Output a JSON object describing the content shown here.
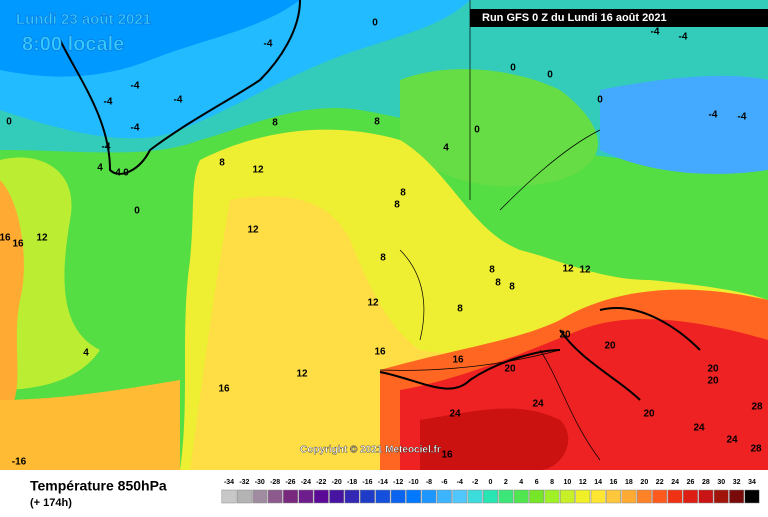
{
  "header": {
    "date": "Lundi 23 août 2021",
    "time": "8:00 locale",
    "run": "Run GFS 0 Z du Lundi 16 août 2021"
  },
  "copyright": "Copyright © 2021 Meteociel.fr",
  "footer": {
    "title": "Température 850hPa",
    "subtitle": "(+ 174h)"
  },
  "legend": {
    "values": [
      -34,
      -32,
      -30,
      -28,
      -26,
      -24,
      -22,
      -20,
      -18,
      -16,
      -14,
      -12,
      -10,
      -8,
      -6,
      -4,
      -2,
      0,
      2,
      4,
      6,
      8,
      10,
      12,
      14,
      16,
      18,
      20,
      22,
      24,
      26,
      28,
      30,
      32,
      34
    ],
    "colors": [
      "#c8c8c8",
      "#b4b4b4",
      "#a08ca0",
      "#8c5a8c",
      "#78287d",
      "#6e1e8c",
      "#5a0a96",
      "#4614a0",
      "#3228b4",
      "#1e3cc8",
      "#1450dc",
      "#0a64f0",
      "#0078ff",
      "#1e96ff",
      "#3cb4ff",
      "#50c8ff",
      "#3cdcdc",
      "#28e6b4",
      "#3ce678",
      "#50e650",
      "#78e628",
      "#a0f028",
      "#c8f028",
      "#f0f028",
      "#ffe632",
      "#ffc83c",
      "#ffaa32",
      "#ff8228",
      "#ff5a1e",
      "#f03214",
      "#dc1e14",
      "#c81414",
      "#a0140a",
      "#780a0a",
      "#000000"
    ]
  },
  "map_labels": [
    "-4",
    "0",
    "-4",
    "-4",
    "0",
    "0",
    "0",
    "-4",
    "-4",
    "0",
    "4",
    "8",
    "8",
    "8",
    "12",
    "-4",
    "-4",
    "-4",
    "-4",
    "4",
    "4",
    "0",
    "-4",
    "0",
    "0",
    "12",
    "16",
    "16",
    "12",
    "8",
    "8",
    "8",
    "12",
    "8",
    "8",
    "8",
    "8",
    "12",
    "12",
    "20",
    "20",
    "20",
    "20",
    "20",
    "16",
    "16",
    "16",
    "12",
    "4",
    "24",
    "24",
    "20",
    "24",
    "24",
    "28",
    "28",
    "-16",
    "16"
  ]
}
